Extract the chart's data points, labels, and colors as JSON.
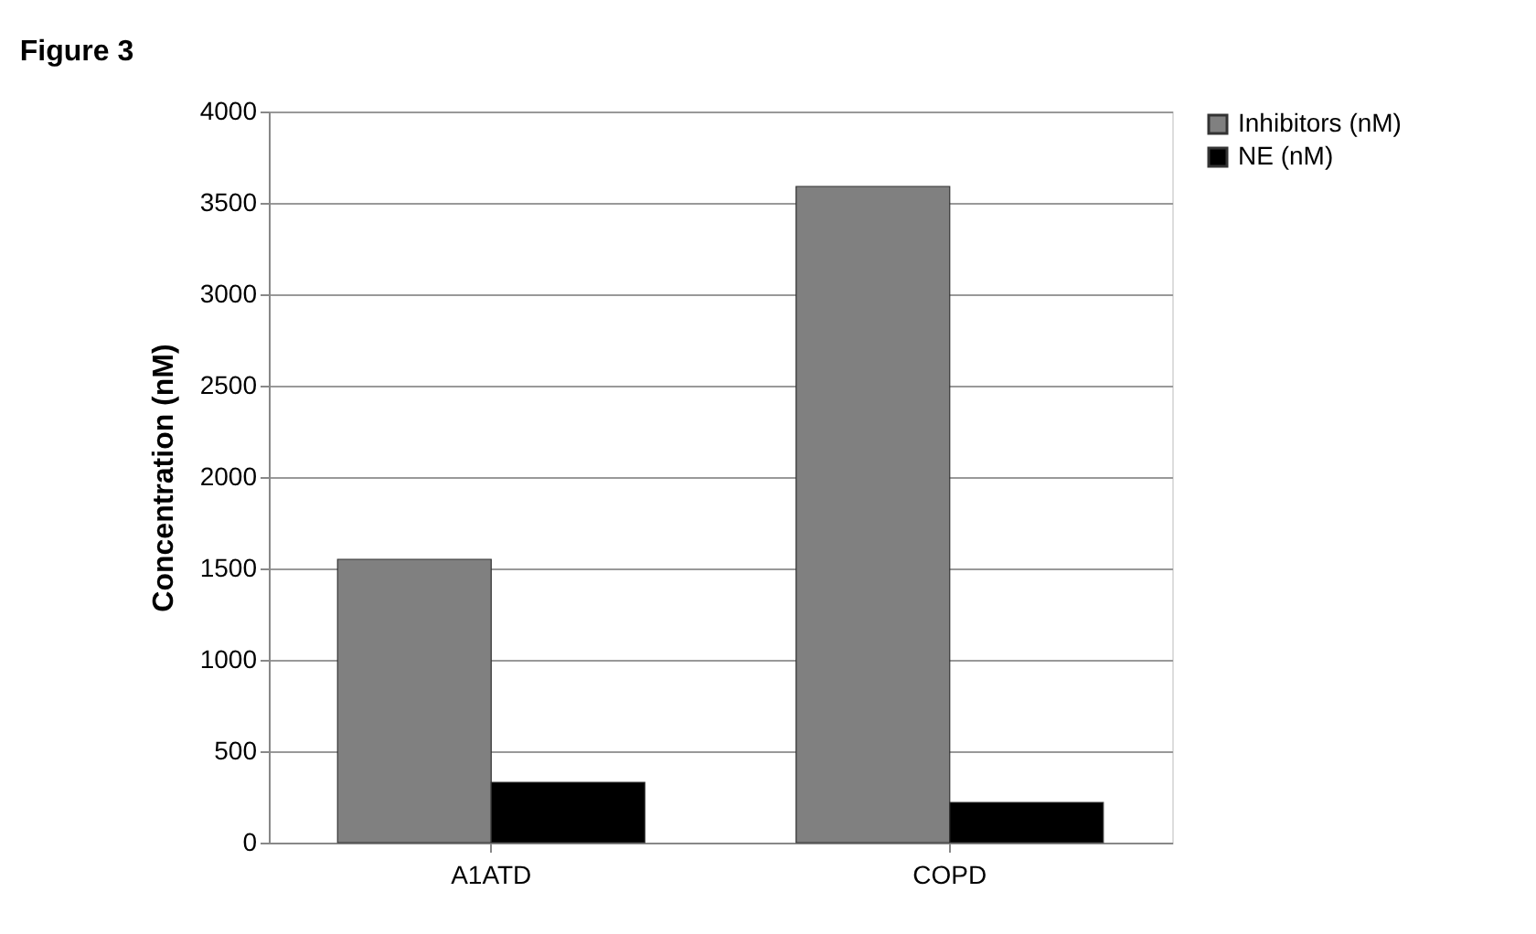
{
  "chart_data": {
    "type": "bar",
    "title": "Figure 3",
    "ylabel": "Concentration (nM)",
    "categories": [
      "A1ATD",
      "COPD"
    ],
    "series": [
      {
        "name": "Inhibitors (nM)",
        "color": "#808080",
        "values": [
          1550,
          3590
        ]
      },
      {
        "name": "NE (nM)",
        "color": "#000000",
        "values": [
          330,
          220
        ]
      }
    ],
    "ylim": [
      0,
      4000
    ],
    "yticks": [
      0,
      500,
      1000,
      1500,
      2000,
      2500,
      3000,
      3500,
      4000
    ],
    "grid": "y",
    "legend": "right"
  }
}
